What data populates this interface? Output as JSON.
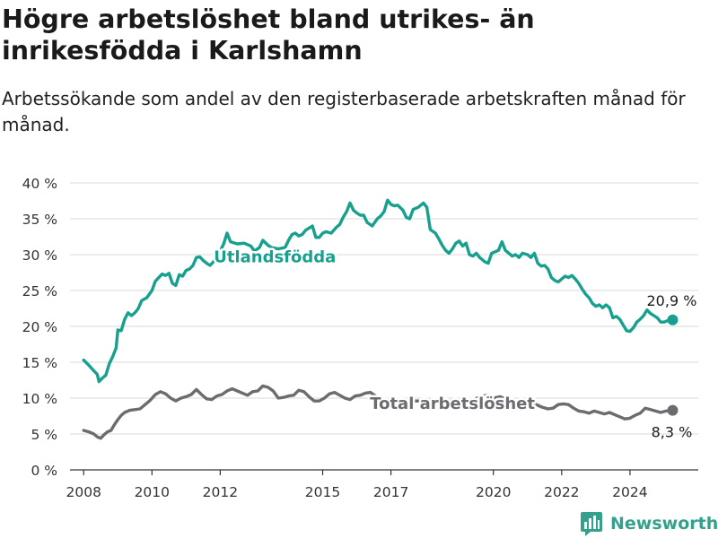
{
  "title": "Högre arbetslöshet bland utrikes- än inrikesfödda i Karlshamn",
  "subtitle": "Arbetssökande som andel av den registerbaserade arbetskraften månad för månad.",
  "brand": "Newsworthy",
  "colors": {
    "foreign": "#17a08e",
    "total": "#6e6b70",
    "grid": "#d8d8d8",
    "axis": "#333333"
  },
  "chart_data": {
    "type": "line",
    "xlim": [
      2007.6,
      2026.0
    ],
    "ylim": [
      0,
      40
    ],
    "y_ticks": [
      {
        "value": 0,
        "label": "0 %"
      },
      {
        "value": 5,
        "label": "5 %"
      },
      {
        "value": 10,
        "label": "10 %"
      },
      {
        "value": 15,
        "label": "15 %"
      },
      {
        "value": 20,
        "label": "20 %"
      },
      {
        "value": 25,
        "label": "25 %"
      },
      {
        "value": 30,
        "label": "30 %"
      },
      {
        "value": 35,
        "label": "35 %"
      },
      {
        "value": 40,
        "label": "40 %"
      }
    ],
    "x_ticks": [
      {
        "value": 2008,
        "label": "2008"
      },
      {
        "value": 2010,
        "label": "2010"
      },
      {
        "value": 2012,
        "label": "2012"
      },
      {
        "value": 2015,
        "label": "2015"
      },
      {
        "value": 2017,
        "label": "2017"
      },
      {
        "value": 2020,
        "label": "2020"
      },
      {
        "value": 2022,
        "label": "2022"
      },
      {
        "value": 2024,
        "label": "2024"
      }
    ],
    "grid": "horizontal",
    "series": [
      {
        "name": "Utlandsfödda",
        "label_at": {
          "x": 2013.6,
          "y": 29.8
        },
        "end_label": "20,9 %",
        "points": [
          [
            2008.0,
            15.3
          ],
          [
            2008.15,
            14.6
          ],
          [
            2008.3,
            13.8
          ],
          [
            2008.4,
            13.3
          ],
          [
            2008.45,
            12.3
          ],
          [
            2008.55,
            12.8
          ],
          [
            2008.65,
            13.2
          ],
          [
            2008.75,
            14.8
          ],
          [
            2008.85,
            15.8
          ],
          [
            2008.95,
            17.0
          ],
          [
            2009.0,
            19.5
          ],
          [
            2009.1,
            19.4
          ],
          [
            2009.2,
            21.0
          ],
          [
            2009.3,
            21.9
          ],
          [
            2009.4,
            21.5
          ],
          [
            2009.5,
            21.9
          ],
          [
            2009.6,
            22.5
          ],
          [
            2009.7,
            23.6
          ],
          [
            2009.85,
            24.0
          ],
          [
            2010.0,
            25.0
          ],
          [
            2010.1,
            26.3
          ],
          [
            2010.2,
            26.8
          ],
          [
            2010.3,
            27.3
          ],
          [
            2010.4,
            27.1
          ],
          [
            2010.5,
            27.4
          ],
          [
            2010.6,
            26.0
          ],
          [
            2010.7,
            25.7
          ],
          [
            2010.8,
            27.2
          ],
          [
            2010.9,
            27.0
          ],
          [
            2011.0,
            27.8
          ],
          [
            2011.1,
            28.0
          ],
          [
            2011.2,
            28.5
          ],
          [
            2011.3,
            29.6
          ],
          [
            2011.4,
            29.7
          ],
          [
            2011.5,
            29.2
          ],
          [
            2011.6,
            28.8
          ],
          [
            2011.7,
            28.5
          ],
          [
            2011.8,
            29.0
          ],
          [
            2011.9,
            29.6
          ],
          [
            2012.0,
            30.5
          ],
          [
            2012.1,
            31.5
          ],
          [
            2012.2,
            33.0
          ],
          [
            2012.3,
            31.8
          ],
          [
            2012.5,
            31.5
          ],
          [
            2012.7,
            31.6
          ],
          [
            2012.9,
            31.2
          ],
          [
            2013.0,
            30.5
          ],
          [
            2013.15,
            31.0
          ],
          [
            2013.25,
            32.0
          ],
          [
            2013.4,
            31.3
          ],
          [
            2013.5,
            31.0
          ],
          [
            2013.7,
            30.8
          ],
          [
            2013.9,
            31.0
          ],
          [
            2014.0,
            32.0
          ],
          [
            2014.1,
            32.8
          ],
          [
            2014.2,
            33.0
          ],
          [
            2014.3,
            32.6
          ],
          [
            2014.4,
            32.8
          ],
          [
            2014.5,
            33.4
          ],
          [
            2014.7,
            34.0
          ],
          [
            2014.8,
            32.4
          ],
          [
            2014.9,
            32.4
          ],
          [
            2015.0,
            33.0
          ],
          [
            2015.1,
            33.2
          ],
          [
            2015.25,
            33.0
          ],
          [
            2015.4,
            33.8
          ],
          [
            2015.5,
            34.2
          ],
          [
            2015.6,
            35.2
          ],
          [
            2015.7,
            36.0
          ],
          [
            2015.8,
            37.2
          ],
          [
            2015.9,
            36.2
          ],
          [
            2016.0,
            35.8
          ],
          [
            2016.1,
            35.5
          ],
          [
            2016.2,
            35.5
          ],
          [
            2016.3,
            34.5
          ],
          [
            2016.45,
            34.0
          ],
          [
            2016.6,
            35.0
          ],
          [
            2016.7,
            35.4
          ],
          [
            2016.8,
            36.0
          ],
          [
            2016.9,
            37.6
          ],
          [
            2017.0,
            37.0
          ],
          [
            2017.1,
            36.8
          ],
          [
            2017.2,
            36.9
          ],
          [
            2017.35,
            36.2
          ],
          [
            2017.45,
            35.2
          ],
          [
            2017.55,
            35.0
          ],
          [
            2017.65,
            36.3
          ],
          [
            2017.8,
            36.6
          ],
          [
            2017.95,
            37.2
          ],
          [
            2018.05,
            36.6
          ],
          [
            2018.15,
            33.5
          ],
          [
            2018.3,
            33.0
          ],
          [
            2018.4,
            32.2
          ],
          [
            2018.5,
            31.3
          ],
          [
            2018.6,
            30.6
          ],
          [
            2018.7,
            30.2
          ],
          [
            2018.8,
            30.8
          ],
          [
            2018.9,
            31.6
          ],
          [
            2019.0,
            31.9
          ],
          [
            2019.1,
            31.2
          ],
          [
            2019.2,
            31.6
          ],
          [
            2019.3,
            30.0
          ],
          [
            2019.4,
            29.8
          ],
          [
            2019.5,
            30.2
          ],
          [
            2019.6,
            29.6
          ],
          [
            2019.75,
            29.0
          ],
          [
            2019.85,
            28.8
          ],
          [
            2019.95,
            30.2
          ],
          [
            2020.05,
            30.4
          ],
          [
            2020.15,
            30.6
          ],
          [
            2020.25,
            31.8
          ],
          [
            2020.35,
            30.6
          ],
          [
            2020.45,
            30.2
          ],
          [
            2020.55,
            29.8
          ],
          [
            2020.65,
            30.0
          ],
          [
            2020.75,
            29.6
          ],
          [
            2020.85,
            30.2
          ],
          [
            2021.0,
            30.0
          ],
          [
            2021.1,
            29.6
          ],
          [
            2021.2,
            30.2
          ],
          [
            2021.3,
            28.8
          ],
          [
            2021.4,
            28.4
          ],
          [
            2021.5,
            28.5
          ],
          [
            2021.6,
            28.0
          ],
          [
            2021.7,
            26.8
          ],
          [
            2021.8,
            26.4
          ],
          [
            2021.9,
            26.2
          ],
          [
            2022.0,
            26.6
          ],
          [
            2022.1,
            27.0
          ],
          [
            2022.2,
            26.8
          ],
          [
            2022.3,
            27.1
          ],
          [
            2022.4,
            26.6
          ],
          [
            2022.5,
            26.0
          ],
          [
            2022.6,
            25.2
          ],
          [
            2022.7,
            24.5
          ],
          [
            2022.8,
            24.0
          ],
          [
            2022.9,
            23.2
          ],
          [
            2023.0,
            22.8
          ],
          [
            2023.1,
            23.0
          ],
          [
            2023.2,
            22.6
          ],
          [
            2023.3,
            23.0
          ],
          [
            2023.4,
            22.6
          ],
          [
            2023.5,
            21.2
          ],
          [
            2023.6,
            21.4
          ],
          [
            2023.7,
            21.0
          ],
          [
            2023.8,
            20.2
          ],
          [
            2023.9,
            19.4
          ],
          [
            2024.0,
            19.3
          ],
          [
            2024.1,
            19.8
          ],
          [
            2024.2,
            20.6
          ],
          [
            2024.3,
            21.0
          ],
          [
            2024.4,
            21.5
          ],
          [
            2024.5,
            22.3
          ],
          [
            2024.6,
            21.8
          ],
          [
            2024.7,
            21.5
          ],
          [
            2024.8,
            21.2
          ],
          [
            2024.9,
            20.6
          ],
          [
            2025.0,
            20.6
          ],
          [
            2025.15,
            20.9
          ],
          [
            2025.25,
            20.9
          ]
        ]
      },
      {
        "name": "Total arbetslöshet",
        "label_at": {
          "x": 2018.8,
          "y": 9.4
        },
        "end_label": "8,3 %",
        "points": [
          [
            2008.0,
            5.5
          ],
          [
            2008.15,
            5.3
          ],
          [
            2008.3,
            5.0
          ],
          [
            2008.4,
            4.6
          ],
          [
            2008.5,
            4.4
          ],
          [
            2008.6,
            4.9
          ],
          [
            2008.7,
            5.3
          ],
          [
            2008.8,
            5.5
          ],
          [
            2008.9,
            6.3
          ],
          [
            2009.0,
            7.0
          ],
          [
            2009.1,
            7.6
          ],
          [
            2009.2,
            8.0
          ],
          [
            2009.35,
            8.3
          ],
          [
            2009.5,
            8.4
          ],
          [
            2009.65,
            8.5
          ],
          [
            2009.8,
            9.1
          ],
          [
            2009.95,
            9.7
          ],
          [
            2010.1,
            10.5
          ],
          [
            2010.25,
            10.9
          ],
          [
            2010.4,
            10.6
          ],
          [
            2010.55,
            10.0
          ],
          [
            2010.7,
            9.6
          ],
          [
            2010.85,
            10.0
          ],
          [
            2011.0,
            10.2
          ],
          [
            2011.15,
            10.5
          ],
          [
            2011.3,
            11.2
          ],
          [
            2011.45,
            10.5
          ],
          [
            2011.6,
            9.9
          ],
          [
            2011.75,
            9.8
          ],
          [
            2011.9,
            10.3
          ],
          [
            2012.05,
            10.5
          ],
          [
            2012.2,
            11.0
          ],
          [
            2012.35,
            11.3
          ],
          [
            2012.5,
            11.0
          ],
          [
            2012.65,
            10.7
          ],
          [
            2012.8,
            10.4
          ],
          [
            2012.95,
            10.9
          ],
          [
            2013.1,
            11.0
          ],
          [
            2013.25,
            11.7
          ],
          [
            2013.4,
            11.5
          ],
          [
            2013.55,
            11.0
          ],
          [
            2013.7,
            10.0
          ],
          [
            2013.85,
            10.1
          ],
          [
            2014.0,
            10.3
          ],
          [
            2014.15,
            10.4
          ],
          [
            2014.3,
            11.1
          ],
          [
            2014.45,
            10.9
          ],
          [
            2014.6,
            10.2
          ],
          [
            2014.75,
            9.6
          ],
          [
            2014.9,
            9.6
          ],
          [
            2015.05,
            10.0
          ],
          [
            2015.2,
            10.6
          ],
          [
            2015.35,
            10.8
          ],
          [
            2015.5,
            10.4
          ],
          [
            2015.65,
            10.0
          ],
          [
            2015.8,
            9.8
          ],
          [
            2015.95,
            10.3
          ],
          [
            2016.1,
            10.4
          ],
          [
            2016.25,
            10.7
          ],
          [
            2016.4,
            10.8
          ],
          [
            2016.55,
            10.3
          ],
          [
            2016.7,
            9.6
          ],
          [
            2016.85,
            9.5
          ],
          [
            2017.0,
            9.7
          ],
          [
            2017.2,
            9.8
          ],
          [
            2017.4,
            9.7
          ],
          [
            2017.6,
            9.6
          ],
          [
            2017.8,
            9.6
          ],
          [
            2018.0,
            9.7
          ],
          [
            2018.2,
            9.7
          ],
          [
            2018.4,
            9.6
          ],
          [
            2018.6,
            9.6
          ],
          [
            2018.8,
            9.6
          ],
          [
            2019.0,
            9.6
          ],
          [
            2019.2,
            9.6
          ],
          [
            2019.4,
            9.7
          ],
          [
            2019.6,
            10.2
          ],
          [
            2019.8,
            10.4
          ],
          [
            2020.0,
            10.0
          ],
          [
            2020.2,
            10.2
          ],
          [
            2020.4,
            9.8
          ],
          [
            2020.6,
            9.4
          ],
          [
            2020.8,
            9.2
          ],
          [
            2021.0,
            9.3
          ],
          [
            2021.15,
            9.4
          ],
          [
            2021.3,
            9.0
          ],
          [
            2021.45,
            8.7
          ],
          [
            2021.6,
            8.5
          ],
          [
            2021.75,
            8.6
          ],
          [
            2021.9,
            9.1
          ],
          [
            2022.05,
            9.2
          ],
          [
            2022.2,
            9.1
          ],
          [
            2022.35,
            8.6
          ],
          [
            2022.5,
            8.2
          ],
          [
            2022.65,
            8.1
          ],
          [
            2022.8,
            7.9
          ],
          [
            2022.95,
            8.2
          ],
          [
            2023.1,
            8.0
          ],
          [
            2023.25,
            7.8
          ],
          [
            2023.4,
            8.0
          ],
          [
            2023.55,
            7.7
          ],
          [
            2023.7,
            7.4
          ],
          [
            2023.85,
            7.1
          ],
          [
            2024.0,
            7.2
          ],
          [
            2024.15,
            7.6
          ],
          [
            2024.3,
            7.9
          ],
          [
            2024.45,
            8.6
          ],
          [
            2024.6,
            8.4
          ],
          [
            2024.75,
            8.2
          ],
          [
            2024.9,
            8.0
          ],
          [
            2025.05,
            8.2
          ],
          [
            2025.25,
            8.3
          ]
        ]
      }
    ]
  }
}
